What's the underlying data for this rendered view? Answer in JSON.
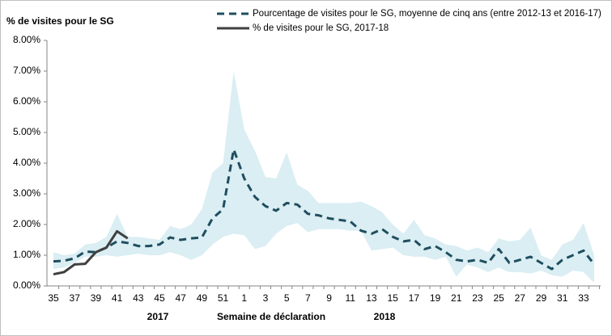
{
  "chart_data": {
    "type": "line",
    "y_axis_title": "% de visites pour le SG",
    "x_axis_title": "Semaine de déclaration",
    "year_labels": [
      "2017",
      "2018"
    ],
    "categories": [
      "35",
      null,
      "37",
      null,
      "39",
      null,
      "41",
      null,
      "43",
      null,
      "45",
      null,
      "47",
      null,
      "49",
      null,
      "51",
      null,
      "1",
      null,
      "3",
      null,
      "5",
      null,
      "7",
      null,
      "9",
      null,
      "11",
      null,
      "13",
      null,
      "15",
      null,
      "17",
      null,
      "19",
      null,
      "21",
      null,
      "23",
      null,
      "25",
      null,
      "27",
      null,
      "29",
      null,
      "31",
      null,
      "33",
      null
    ],
    "series": [
      {
        "name": "Pourcentage de visites pour le SG, moyenne de cinq ans (entre 2012-13 et 2016-17)",
        "color": "#1f4e5f",
        "dashed": true,
        "values": [
          0.8,
          0.82,
          0.9,
          1.12,
          1.1,
          1.25,
          1.45,
          1.4,
          1.3,
          1.3,
          1.35,
          1.58,
          1.5,
          1.55,
          1.58,
          2.2,
          2.5,
          4.45,
          3.5,
          2.9,
          2.6,
          2.45,
          2.7,
          2.65,
          2.35,
          2.3,
          2.2,
          2.15,
          2.1,
          1.8,
          1.7,
          1.85,
          1.6,
          1.45,
          1.5,
          1.2,
          1.3,
          1.1,
          0.85,
          0.8,
          0.85,
          0.75,
          1.2,
          0.75,
          0.85,
          0.95,
          0.75,
          0.55,
          0.85,
          1.0,
          1.15,
          0.7
        ]
      },
      {
        "name": "% de visites pour le SG, 2017-18",
        "color": "#404040",
        "dashed": false,
        "values": [
          0.38,
          0.45,
          0.7,
          0.72,
          1.1,
          1.25,
          1.78,
          1.55,
          null,
          null,
          null,
          null,
          null,
          null,
          null,
          null,
          null,
          null,
          null,
          null,
          null,
          null,
          null,
          null,
          null,
          null,
          null,
          null,
          null,
          null,
          null,
          null,
          null,
          null,
          null,
          null,
          null,
          null,
          null,
          null,
          null,
          null,
          null,
          null,
          null,
          null,
          null,
          null,
          null,
          null,
          null,
          null
        ]
      }
    ],
    "range": {
      "color": "#daeef3",
      "low": [
        0.55,
        0.6,
        0.75,
        0.95,
        0.95,
        1.0,
        0.95,
        1.0,
        1.05,
        1.0,
        1.0,
        1.1,
        1.0,
        0.85,
        1.0,
        1.35,
        1.6,
        1.7,
        1.65,
        1.2,
        1.3,
        1.7,
        1.95,
        2.05,
        1.75,
        1.85,
        1.85,
        1.85,
        1.8,
        1.8,
        1.15,
        1.2,
        1.25,
        1.0,
        0.95,
        0.95,
        0.85,
        0.95,
        0.3,
        0.7,
        0.6,
        0.45,
        0.6,
        0.45,
        0.45,
        0.4,
        0.5,
        0.35,
        0.3,
        0.5,
        0.45,
        0.1
      ],
      "high": [
        1.1,
        1.0,
        1.05,
        1.35,
        1.4,
        1.6,
        2.35,
        1.6,
        1.6,
        1.55,
        1.5,
        1.95,
        1.85,
        2.0,
        2.5,
        3.7,
        4.0,
        7.0,
        5.1,
        4.4,
        3.55,
        3.5,
        4.35,
        3.3,
        3.1,
        2.7,
        2.7,
        2.7,
        2.7,
        2.75,
        2.6,
        2.4,
        2.0,
        1.7,
        2.15,
        1.65,
        1.55,
        1.35,
        1.3,
        1.15,
        1.25,
        1.1,
        1.55,
        1.45,
        1.5,
        1.9,
        1.0,
        0.85,
        1.35,
        1.5,
        2.05,
        1.0
      ]
    },
    "ylim": [
      0,
      8
    ],
    "yticks": [
      {
        "value": 0,
        "label": "0.00%"
      },
      {
        "value": 1,
        "label": "1.00%"
      },
      {
        "value": 2,
        "label": "2.00%"
      },
      {
        "value": 3,
        "label": "3.00%"
      },
      {
        "value": 4,
        "label": "4.00%"
      },
      {
        "value": 5,
        "label": "5.00%"
      },
      {
        "value": 6,
        "label": "6.00%"
      },
      {
        "value": 7,
        "label": "7.00%"
      },
      {
        "value": 8,
        "label": "8.00%"
      }
    ],
    "legend": "top-right"
  }
}
